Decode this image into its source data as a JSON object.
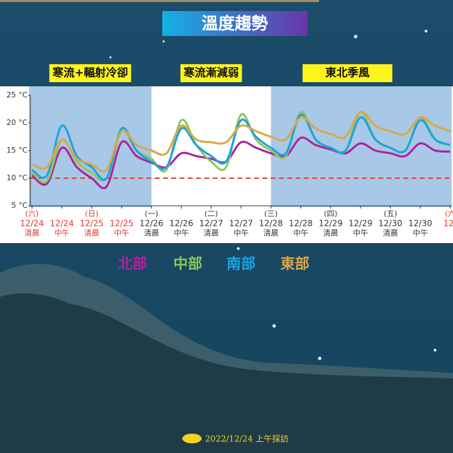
{
  "chart_data": {
    "type": "line",
    "title": "溫度趨勢",
    "x": [
      0,
      0.5,
      1,
      1.5,
      2,
      2.5,
      3,
      3.5,
      4,
      4.5,
      5,
      5.5,
      6,
      6.5,
      7,
      7.5,
      8,
      8.5,
      9,
      9.5,
      10,
      10.5,
      11,
      11.5,
      12,
      12.5,
      13,
      13.5,
      14
    ],
    "xlim": [
      -0.1,
      14.05
    ],
    "xticks": [
      0,
      1,
      2,
      3,
      4,
      5,
      6,
      7,
      8,
      9,
      10,
      11,
      12,
      13,
      14
    ],
    "weekdays": [
      "(六)",
      null,
      "(日)",
      null,
      "(一)",
      null,
      "(二)",
      null,
      "(三)",
      null,
      "(四)",
      null,
      "(五)",
      null,
      "(六"
    ],
    "categories": [
      "12/24",
      "12/24",
      "12/25",
      "12/25",
      "12/26",
      "12/26",
      "12/27",
      "12/27",
      "12/28",
      "12/28",
      "12/29",
      "12/29",
      "12/30",
      "12/30",
      "12/"
    ],
    "periods": [
      "清晨",
      "中午",
      "清晨",
      "中午",
      "清晨",
      "中午",
      "清晨",
      "中午",
      "清晨",
      "中午",
      "清晨",
      "中午",
      "清晨",
      "中午",
      null
    ],
    "xtick_colors": [
      "#e8332e",
      "#e8332e",
      "#e8332e",
      "#e8332e",
      "#333333",
      "#333333",
      "#333333",
      "#333333",
      "#333333",
      "#333333",
      "#333333",
      "#333333",
      "#333333",
      "#333333",
      "#e8332e"
    ],
    "ylim": [
      5,
      25
    ],
    "yticks": [
      {
        "value": 5,
        "label": "5 °C"
      },
      {
        "value": 10,
        "label": "10 °C"
      },
      {
        "value": 15,
        "label": "15 °C"
      },
      {
        "value": 20,
        "label": "20 °C"
      },
      {
        "value": 25,
        "label": "25 °C"
      }
    ],
    "reference_line": {
      "value": 10,
      "color": "#e2452b"
    },
    "regions": [
      {
        "label": "寒流+輻射冷卻",
        "xrange": [
          -0.1,
          4
        ],
        "shaded": true
      },
      {
        "label": "寒流漸減弱",
        "xrange": [
          4,
          8
        ],
        "shaded": false
      },
      {
        "label": "東北季風",
        "xrange": [
          8,
          14.05
        ],
        "shaded": true
      }
    ],
    "series": [
      {
        "name": "北部",
        "color": "#b0219a",
        "values": [
          10.5,
          9,
          15.5,
          12,
          10,
          8.5,
          16.5,
          14,
          12.8,
          12,
          14.5,
          14,
          13.5,
          13,
          16.5,
          15.5,
          14.5,
          14,
          17.3,
          16,
          15.2,
          14.5,
          16.3,
          15,
          14.5,
          14,
          16.3,
          15,
          14.8
        ]
      },
      {
        "name": "中部",
        "color": "#8dc85a",
        "values": [
          11,
          9.5,
          17,
          13,
          11,
          10,
          18.5,
          15,
          13.5,
          11.5,
          20.5,
          16,
          13,
          12,
          21.5,
          17,
          15,
          14,
          22,
          17,
          15.5,
          15,
          22,
          17,
          15.5,
          15,
          21,
          17,
          16
        ]
      },
      {
        "name": "南部",
        "color": "#1aa3e0",
        "values": [
          11.5,
          10.5,
          19.5,
          14,
          12,
          10,
          19,
          15,
          13,
          12,
          19,
          16,
          14,
          13,
          20.5,
          17.5,
          15.5,
          14.5,
          21.5,
          17,
          15.5,
          15,
          21,
          17,
          15.5,
          15,
          20.5,
          17,
          16
        ]
      },
      {
        "name": "東部",
        "color": "#d9a84a",
        "values": [
          12.5,
          12,
          17,
          13.5,
          12.5,
          11.5,
          18.5,
          16,
          15,
          14.5,
          19.5,
          17,
          16.5,
          16.5,
          19.5,
          18.5,
          17.5,
          17,
          21,
          19,
          18,
          17.5,
          22,
          19.5,
          18.5,
          18,
          21,
          19.5,
          18.5
        ]
      }
    ]
  },
  "footer": "2022/12/24  上午採訪"
}
